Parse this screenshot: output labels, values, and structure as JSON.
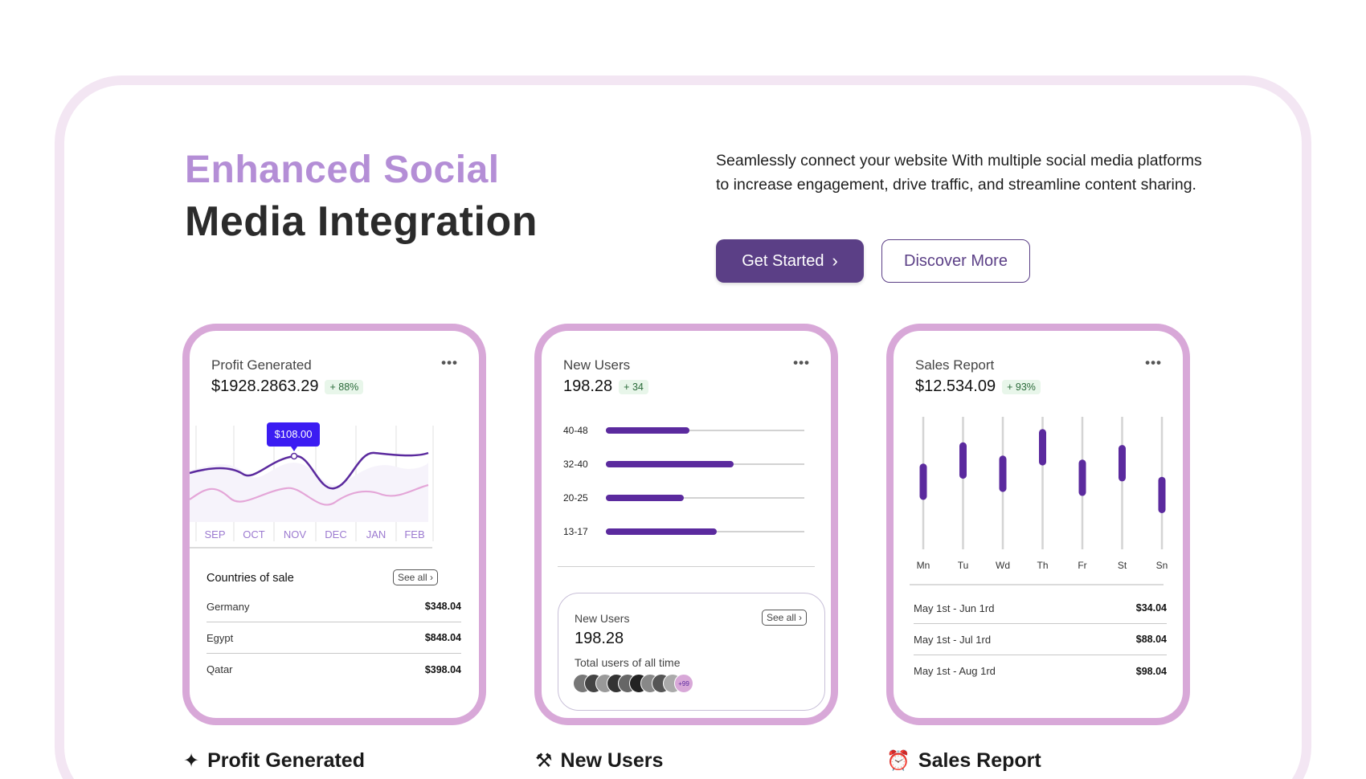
{
  "hero": {
    "title_line1": "Enhanced Social",
    "title_line2": "Media Integration",
    "description": "Seamlessly connect your website With multiple social media platforms to increase engagement, drive traffic, and streamline content sharing.",
    "primary_button": "Get Started",
    "secondary_button": "Discover More"
  },
  "colors": {
    "accent": "#5b3f86",
    "light_purple": "#b48ed6",
    "card_border": "#d8a8d8",
    "bar": "#5b2a9e"
  },
  "profit_card": {
    "title": "Profit Generated",
    "menu": "•••",
    "value": "$1928.2863.29",
    "badge": "+ 88%",
    "tooltip": "$108.00",
    "months": [
      "SEP",
      "OCT",
      "NOV",
      "DEC",
      "JAN",
      "FEB"
    ],
    "countries_label": "Countries of sale",
    "see_all": "See all",
    "countries": [
      {
        "name": "Germany",
        "value": "$348.04"
      },
      {
        "name": "Egypt",
        "value": "$848.04"
      },
      {
        "name": "Qatar",
        "value": "$398.04"
      }
    ]
  },
  "users_card": {
    "title": "New Users",
    "menu": "•••",
    "value": "198.28",
    "badge": "+ 34",
    "age_groups": [
      {
        "label": "40-48",
        "fill": 0.45
      },
      {
        "label": "32-40",
        "fill": 0.69
      },
      {
        "label": "20-25",
        "fill": 0.42
      },
      {
        "label": "13-17",
        "fill": 0.6
      }
    ],
    "inner_title": "New Users",
    "inner_value": "198.28",
    "inner_see_all": "See all",
    "inner_caption": "Total users of all time",
    "more_badge": "+99"
  },
  "sales_card": {
    "title": "Sales Report",
    "menu": "•••",
    "value": "$12.534.09",
    "badge": "+ 93%",
    "days": [
      {
        "label": "Mn",
        "low": 0.4,
        "high": 0.62
      },
      {
        "label": "Tu",
        "low": 0.56,
        "high": 0.78
      },
      {
        "label": "Wd",
        "low": 0.46,
        "high": 0.68
      },
      {
        "label": "Th",
        "low": 0.66,
        "high": 0.88
      },
      {
        "label": "Fr",
        "low": 0.43,
        "high": 0.65
      },
      {
        "label": "St",
        "low": 0.54,
        "high": 0.76
      },
      {
        "label": "Sn",
        "low": 0.3,
        "high": 0.52
      }
    ],
    "periods": [
      {
        "range": "May 1st - Jun 1rd",
        "value": "$34.04"
      },
      {
        "range": "May 1st - Jul 1rd",
        "value": "$88.04"
      },
      {
        "range": "May 1st - Aug 1rd",
        "value": "$98.04"
      }
    ]
  },
  "section_labels": {
    "profit": "Profit Generated",
    "users": "New Users",
    "sales": "Sales Report"
  }
}
